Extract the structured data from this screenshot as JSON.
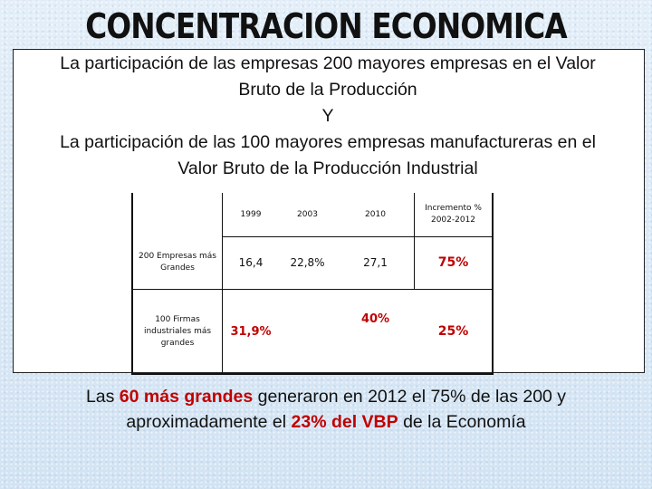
{
  "title": "CONCENTRACION ECONOMICA",
  "subtitle": {
    "line1": "La participación de las empresas 200 mayores empresas en el Valor",
    "line2": "Bruto de la Producción",
    "line3": "Y",
    "line4": "La participación de las 100 mayores empresas manufactureras en el",
    "line5": "Valor Bruto de la Producción Industrial"
  },
  "table": {
    "headers": {
      "c1999": "1999",
      "c2003": "2003",
      "c2010": "2010",
      "increment_line1": "Incremento %",
      "increment_line2": "2002-2012"
    },
    "rows": [
      {
        "label_line1": "200 Empresas más",
        "label_line2": "Grandes",
        "label_line3": "",
        "v1999": "16,4",
        "v2003": "22,8%",
        "v2010": "27,1",
        "increment": "75%"
      },
      {
        "label_line1": "100 Firmas",
        "label_line2": "industriales más",
        "label_line3": "grandes",
        "v1999": "31,9%",
        "v2003": "",
        "v2010": "40%",
        "increment": "25%"
      }
    ]
  },
  "footer": {
    "l1_a": "Las ",
    "l1_b": "60 más grandes",
    "l1_c": " generaron en 2012 el 75% de las 200 y",
    "l2_a": "aproximadamente el ",
    "l2_b": "23% del VBP",
    "l2_c": " de la Economía"
  },
  "colors": {
    "emphasis": "#c00000",
    "background": "#d6e6f4"
  }
}
